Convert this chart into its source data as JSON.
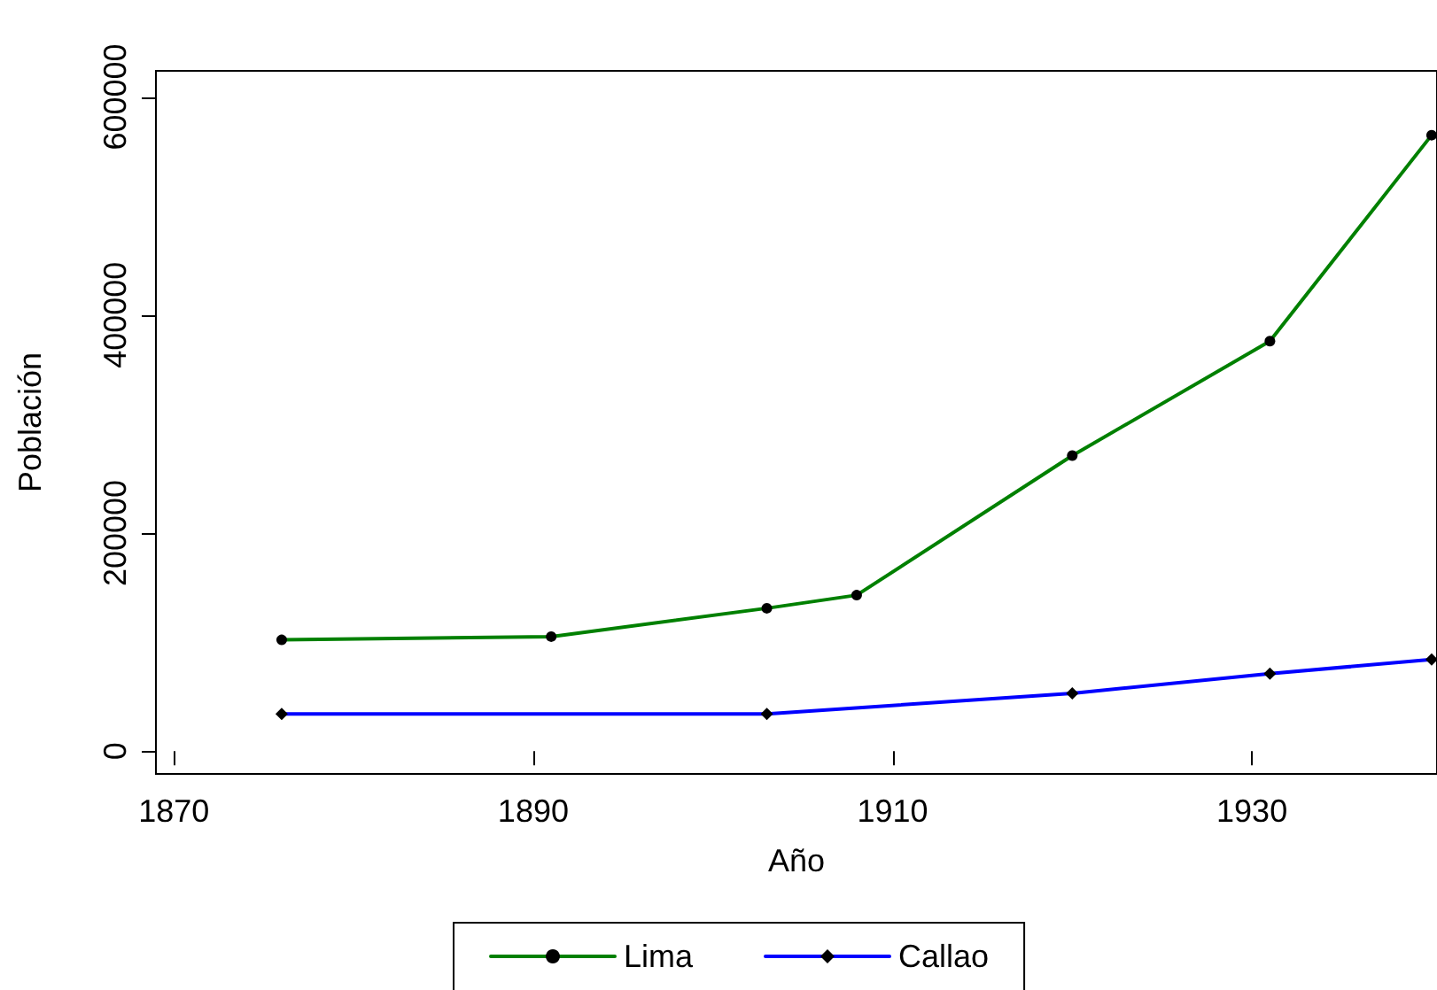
{
  "chart_data": {
    "type": "line",
    "xlabel": "Año",
    "ylabel": "Población",
    "xlim": [
      1869,
      1940.3
    ],
    "xticks": [
      1870,
      1890,
      1910,
      1930
    ],
    "ylim": [
      -21000,
      624000
    ],
    "yticks": [
      0,
      200000,
      400000,
      600000
    ],
    "series": [
      {
        "name": "Lima",
        "color": "#008000",
        "marker": "circle",
        "x": [
          1876,
          1891,
          1903,
          1908,
          1920,
          1931,
          1940
        ],
        "values": [
          102000,
          105000,
          131000,
          143000,
          271000,
          376000,
          565000
        ]
      },
      {
        "name": "Callao",
        "color": "#0000ff",
        "marker": "diamond",
        "x": [
          1876,
          1903,
          1920,
          1931,
          1940
        ],
        "values": [
          34000,
          34000,
          53000,
          71000,
          84000
        ]
      }
    ],
    "line_style": "solid",
    "grid": false,
    "legend": "bottom"
  }
}
